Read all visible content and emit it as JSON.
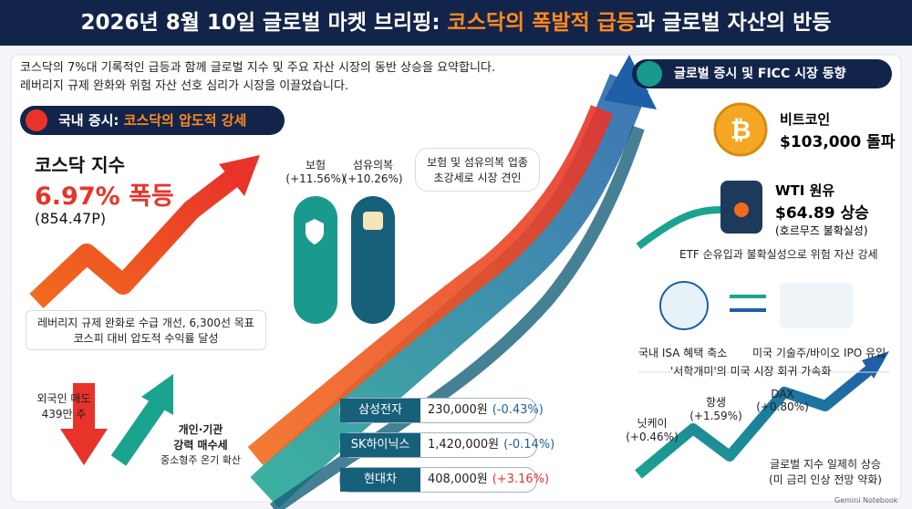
{
  "header": {
    "title_prefix": "2026년 8월 10일 글로벌 마켓 브리핑: ",
    "title_highlight": "코스닥의 폭발적 급등",
    "title_suffix": "과 글로벌 자산의 반등"
  },
  "intro": [
    "코스닥의 7%대 기록적인 급등과 함께 글로벌 지수 및 주요 자산 시장의 동반 상승을 요약합니다.",
    "레버리지 규제 완화와 위험 자산 선호 심리가 시장을 이끌었습니다."
  ],
  "domestic": {
    "label": "국내 증시: ",
    "highlight": "코스닥의 압도적 강세",
    "kosdaq": {
      "name": "코스닥 지수",
      "change": "6.97% 폭등",
      "level": "(854.47P)"
    },
    "caption": [
      "레버리지 규제 완화로 수급 개선, 6,300선 목표",
      "코스피 대비 압도적 수익률 달성"
    ],
    "foreign": [
      "외국인 매도",
      "439만 주"
    ],
    "retail": [
      "개인·기관",
      "강력 매수세",
      "중소형주 온기 확산"
    ],
    "sectors": [
      {
        "name": "보험",
        "change": "(+11.56%)"
      },
      {
        "name": "섬유의복",
        "change": "(+10.26%)"
      }
    ],
    "sector_note": [
      "보험 및 섬유의복 업종",
      "초강세로 시장 견인"
    ],
    "stocks": [
      {
        "name": "삼성전자",
        "price": "230,000원",
        "change": "(-0.43%)"
      },
      {
        "name": "SK하이닉스",
        "price": "1,420,000원",
        "change": "(-0.14%)"
      },
      {
        "name": "현대차",
        "price": "408,000원",
        "change": "(+3.16%)"
      }
    ]
  },
  "global": {
    "label": "글로벌 증시 및 FICC 시장 동향",
    "bitcoin": [
      "비트코인",
      "$103,000 돌파"
    ],
    "wti": [
      "WTI 원유",
      "$64.89 상승",
      "(호르무즈 불확실성)"
    ],
    "risk_note": "ETF 순유입과 불확실성으로 위험 자산 강세",
    "flows": [
      "국내 ISA 혜택 축소",
      "미국 기술주/바이오 IPO 유입",
      "'서학개미'의 미국 시장 회귀 가속화"
    ],
    "indices": [
      {
        "name": "닛케이",
        "change": "(+0.46%)"
      },
      {
        "name": "항생",
        "change": "(+1.59%)"
      },
      {
        "name": "DAX",
        "change": "(+0.80%)"
      }
    ],
    "index_note": [
      "글로벌 지수 일제히 상승",
      "(미 금리 인상 전망 약화)"
    ]
  },
  "footer": {
    "watermark": "Gemini Notebook"
  }
}
